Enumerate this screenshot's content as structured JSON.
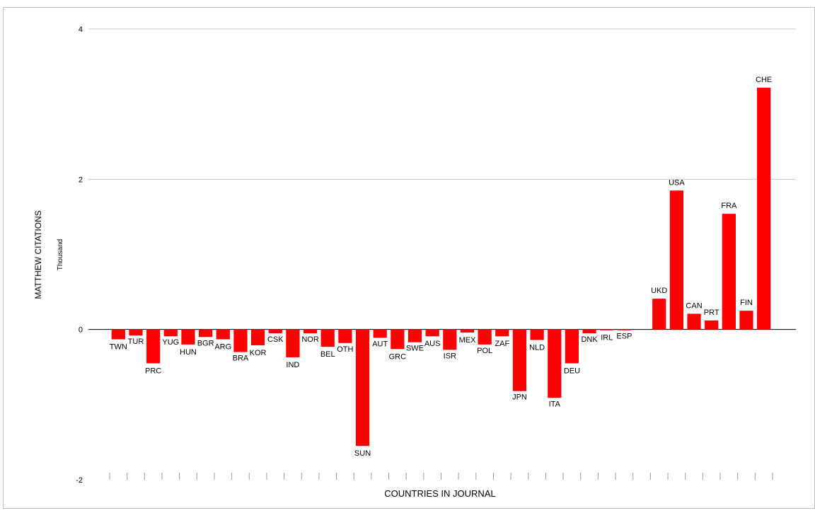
{
  "chart_data": {
    "type": "bar",
    "title": "",
    "xlabel": "COUNTRIES IN JOURNAL",
    "ylabel": "MATTHEW CITATIONS",
    "yunit": "Thousand",
    "ylim": [
      -2,
      4
    ],
    "yticks": [
      -2,
      0,
      2,
      4
    ],
    "grid": true,
    "legend": "none",
    "bar_color": "#ff0000",
    "categories": [
      "TWN",
      "TUR",
      "PRC",
      "YUG",
      "HUN",
      "BGR",
      "ARG",
      "BRA",
      "KOR",
      "CSK",
      "IND",
      "NOR",
      "BEL",
      "OTH",
      "SUN",
      "AUT",
      "GRC",
      "SWE",
      "AUS",
      "ISR",
      "MEX",
      "POL",
      "ZAF",
      "JPN",
      "NLD",
      "ITA",
      "DEU",
      "DNK",
      "IRL",
      "ESP",
      "",
      "UKD",
      "USA",
      "CAN",
      "PRT",
      "FRA",
      "FIN",
      "CHE"
    ],
    "values": [
      -0.13,
      -0.08,
      -0.45,
      -0.09,
      -0.2,
      -0.1,
      -0.13,
      -0.3,
      -0.21,
      -0.05,
      -0.37,
      -0.05,
      -0.23,
      -0.18,
      -1.55,
      -0.11,
      -0.26,
      -0.17,
      -0.09,
      -0.27,
      -0.04,
      -0.2,
      -0.09,
      -0.82,
      -0.14,
      -0.91,
      -0.45,
      -0.05,
      -0.01,
      -0.01,
      0,
      0.41,
      1.85,
      0.21,
      0.12,
      1.54,
      0.25,
      3.22
    ]
  }
}
